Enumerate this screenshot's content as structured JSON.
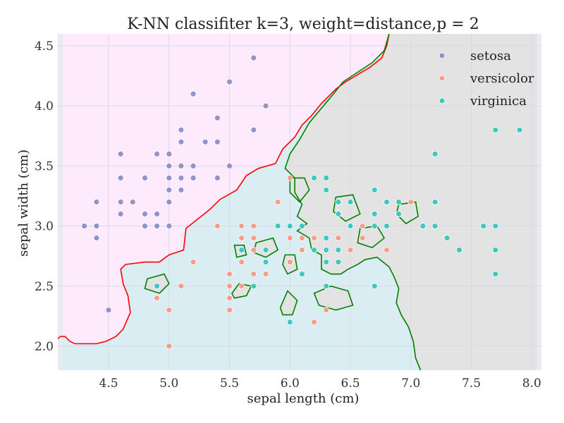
{
  "chart_data": {
    "type": "scatter",
    "title": "K-NN classifiter k=3, weight=distance,p = 2",
    "xlabel": "sepal length (cm)",
    "ylabel": "sepal width (cm)",
    "xlim": [
      4.08,
      8.08
    ],
    "ylim": [
      1.8,
      4.6
    ],
    "xticks": [
      4.5,
      5.0,
      5.5,
      6.0,
      6.5,
      7.0,
      7.5,
      8.0
    ],
    "yticks": [
      2.0,
      2.5,
      3.0,
      3.5,
      4.0,
      4.5
    ],
    "xtick_labels": [
      "4.5",
      "5.0",
      "5.5",
      "6.0",
      "6.5",
      "7.0",
      "7.5",
      "8.0"
    ],
    "ytick_labels": [
      "2.0",
      "2.5",
      "3.0",
      "3.5",
      "4.0",
      "4.5"
    ],
    "grid": true,
    "legend_position": "top-right",
    "background_regions": {
      "setosa": "#fdeafd",
      "versicolor": "#daedf3",
      "virginica": "#e3e3e3",
      "plot_bg": "#eaeaf2"
    },
    "boundary_colors": {
      "setosa_boundary": "#ff0000",
      "virginica_boundary": "#008000"
    },
    "series": [
      {
        "name": "setosa",
        "color": "#9393cc",
        "points": [
          [
            5.1,
            3.5
          ],
          [
            4.9,
            3.0
          ],
          [
            4.7,
            3.2
          ],
          [
            4.6,
            3.1
          ],
          [
            5.0,
            3.6
          ],
          [
            5.4,
            3.9
          ],
          [
            4.6,
            3.4
          ],
          [
            5.0,
            3.4
          ],
          [
            4.4,
            2.9
          ],
          [
            4.9,
            3.1
          ],
          [
            5.4,
            3.7
          ],
          [
            4.8,
            3.4
          ],
          [
            4.8,
            3.0
          ],
          [
            4.3,
            3.0
          ],
          [
            5.8,
            4.0
          ],
          [
            5.7,
            4.4
          ],
          [
            5.4,
            3.9
          ],
          [
            5.1,
            3.5
          ],
          [
            5.7,
            3.8
          ],
          [
            5.1,
            3.8
          ],
          [
            5.4,
            3.4
          ],
          [
            5.1,
            3.7
          ],
          [
            4.6,
            3.6
          ],
          [
            5.1,
            3.3
          ],
          [
            4.8,
            3.4
          ],
          [
            5.0,
            3.0
          ],
          [
            5.0,
            3.4
          ],
          [
            5.2,
            3.5
          ],
          [
            5.2,
            3.4
          ],
          [
            4.7,
            3.2
          ],
          [
            4.8,
            3.1
          ],
          [
            5.4,
            3.4
          ],
          [
            5.2,
            4.1
          ],
          [
            5.5,
            4.2
          ],
          [
            4.9,
            3.1
          ],
          [
            5.0,
            3.2
          ],
          [
            5.5,
            3.5
          ],
          [
            4.9,
            3.6
          ],
          [
            4.4,
            3.0
          ],
          [
            5.1,
            3.4
          ],
          [
            5.0,
            3.5
          ],
          [
            4.5,
            2.3
          ],
          [
            4.4,
            3.2
          ],
          [
            5.0,
            3.5
          ],
          [
            5.1,
            3.8
          ],
          [
            4.8,
            3.0
          ],
          [
            5.1,
            3.8
          ],
          [
            4.6,
            3.2
          ],
          [
            5.3,
            3.7
          ],
          [
            5.0,
            3.3
          ]
        ]
      },
      {
        "name": "versicolor",
        "color": "#f2a08c",
        "points": [
          [
            7.0,
            3.2
          ],
          [
            6.4,
            3.2
          ],
          [
            6.9,
            3.1
          ],
          [
            5.5,
            2.3
          ],
          [
            6.5,
            2.8
          ],
          [
            5.7,
            2.8
          ],
          [
            6.3,
            3.3
          ],
          [
            4.9,
            2.4
          ],
          [
            6.6,
            2.9
          ],
          [
            5.2,
            2.7
          ],
          [
            5.0,
            2.0
          ],
          [
            5.9,
            3.0
          ],
          [
            6.0,
            2.2
          ],
          [
            6.1,
            2.9
          ],
          [
            5.6,
            2.9
          ],
          [
            6.7,
            3.1
          ],
          [
            5.6,
            3.0
          ],
          [
            5.8,
            2.7
          ],
          [
            6.2,
            2.2
          ],
          [
            5.6,
            2.5
          ],
          [
            5.9,
            3.2
          ],
          [
            6.1,
            2.8
          ],
          [
            6.3,
            2.5
          ],
          [
            6.1,
            2.8
          ],
          [
            6.4,
            2.9
          ],
          [
            6.6,
            3.0
          ],
          [
            6.8,
            2.8
          ],
          [
            6.7,
            3.0
          ],
          [
            6.0,
            2.9
          ],
          [
            5.7,
            2.6
          ],
          [
            5.5,
            2.4
          ],
          [
            5.5,
            2.4
          ],
          [
            5.8,
            2.7
          ],
          [
            6.0,
            2.7
          ],
          [
            5.4,
            3.0
          ],
          [
            6.0,
            3.4
          ],
          [
            6.7,
            3.1
          ],
          [
            6.3,
            2.3
          ],
          [
            5.6,
            3.0
          ],
          [
            5.5,
            2.5
          ],
          [
            5.5,
            2.6
          ],
          [
            6.1,
            3.0
          ],
          [
            5.8,
            2.6
          ],
          [
            5.0,
            2.3
          ],
          [
            5.6,
            2.7
          ],
          [
            5.7,
            3.0
          ],
          [
            5.7,
            2.9
          ],
          [
            6.2,
            2.9
          ],
          [
            5.1,
            2.5
          ],
          [
            5.7,
            2.8
          ]
        ]
      },
      {
        "name": "virginica",
        "color": "#40c8c0",
        "points": [
          [
            6.3,
            3.3
          ],
          [
            5.8,
            2.7
          ],
          [
            7.1,
            3.0
          ],
          [
            6.3,
            2.9
          ],
          [
            6.5,
            3.0
          ],
          [
            7.6,
            3.0
          ],
          [
            4.9,
            2.5
          ],
          [
            7.3,
            2.9
          ],
          [
            6.7,
            2.5
          ],
          [
            7.2,
            3.6
          ],
          [
            6.5,
            3.2
          ],
          [
            6.4,
            2.7
          ],
          [
            6.8,
            3.0
          ],
          [
            5.7,
            2.5
          ],
          [
            5.8,
            2.8
          ],
          [
            6.4,
            3.2
          ],
          [
            6.5,
            3.0
          ],
          [
            7.7,
            3.8
          ],
          [
            7.7,
            2.6
          ],
          [
            6.0,
            2.2
          ],
          [
            6.9,
            3.2
          ],
          [
            5.6,
            2.8
          ],
          [
            7.7,
            2.8
          ],
          [
            6.3,
            2.7
          ],
          [
            6.7,
            3.3
          ],
          [
            7.2,
            3.2
          ],
          [
            6.2,
            2.8
          ],
          [
            6.1,
            3.0
          ],
          [
            6.4,
            2.8
          ],
          [
            7.2,
            3.0
          ],
          [
            7.4,
            2.8
          ],
          [
            7.9,
            3.8
          ],
          [
            6.4,
            2.8
          ],
          [
            6.3,
            2.8
          ],
          [
            6.1,
            2.6
          ],
          [
            7.7,
            3.0
          ],
          [
            6.3,
            3.4
          ],
          [
            6.4,
            3.1
          ],
          [
            6.0,
            3.0
          ],
          [
            6.9,
            3.1
          ],
          [
            6.7,
            3.1
          ],
          [
            6.9,
            3.1
          ],
          [
            5.8,
            2.7
          ],
          [
            6.8,
            3.2
          ],
          [
            6.7,
            3.3
          ],
          [
            6.7,
            3.0
          ],
          [
            6.3,
            2.5
          ],
          [
            6.5,
            3.0
          ],
          [
            6.2,
            3.4
          ],
          [
            5.9,
            3.0
          ]
        ]
      }
    ],
    "decision_boundaries": {
      "setosa_region_border": [
        [
          4.08,
          2.06
        ],
        [
          4.1,
          2.08
        ],
        [
          4.14,
          2.08
        ],
        [
          4.18,
          2.04
        ],
        [
          4.22,
          2.02
        ],
        [
          4.4,
          2.02
        ],
        [
          4.48,
          2.04
        ],
        [
          4.56,
          2.08
        ],
        [
          4.62,
          2.14
        ],
        [
          4.68,
          2.28
        ],
        [
          4.66,
          2.42
        ],
        [
          4.62,
          2.52
        ],
        [
          4.6,
          2.64
        ],
        [
          4.64,
          2.68
        ],
        [
          4.8,
          2.7
        ],
        [
          4.92,
          2.7
        ],
        [
          5.0,
          2.76
        ],
        [
          5.12,
          2.8
        ],
        [
          5.14,
          2.98
        ],
        [
          5.24,
          3.06
        ],
        [
          5.34,
          3.14
        ],
        [
          5.42,
          3.22
        ],
        [
          5.56,
          3.3
        ],
        [
          5.64,
          3.42
        ],
        [
          5.74,
          3.48
        ],
        [
          5.88,
          3.52
        ],
        [
          5.94,
          3.64
        ],
        [
          6.04,
          3.74
        ],
        [
          6.1,
          3.84
        ],
        [
          6.18,
          3.92
        ],
        [
          6.26,
          4.02
        ],
        [
          6.38,
          4.14
        ],
        [
          6.46,
          4.2
        ],
        [
          6.56,
          4.26
        ],
        [
          6.66,
          4.32
        ],
        [
          6.76,
          4.4
        ],
        [
          6.8,
          4.5
        ],
        [
          6.82,
          4.6
        ]
      ],
      "virginica_region_border": [
        [
          6.82,
          4.6
        ],
        [
          6.78,
          4.46
        ],
        [
          6.68,
          4.36
        ],
        [
          6.56,
          4.28
        ],
        [
          6.44,
          4.2
        ],
        [
          6.36,
          4.1
        ],
        [
          6.26,
          3.98
        ],
        [
          6.16,
          3.86
        ],
        [
          6.08,
          3.72
        ],
        [
          6.0,
          3.6
        ],
        [
          5.96,
          3.48
        ],
        [
          6.04,
          3.4
        ],
        [
          6.04,
          3.28
        ],
        [
          6.1,
          3.18
        ],
        [
          6.06,
          3.08
        ],
        [
          6.14,
          3.02
        ],
        [
          6.06,
          2.96
        ],
        [
          6.16,
          2.9
        ],
        [
          6.18,
          2.8
        ],
        [
          6.26,
          2.76
        ],
        [
          6.26,
          2.64
        ],
        [
          6.34,
          2.6
        ],
        [
          6.42,
          2.6
        ],
        [
          6.48,
          2.64
        ],
        [
          6.56,
          2.68
        ],
        [
          6.62,
          2.72
        ],
        [
          6.72,
          2.74
        ],
        [
          6.82,
          2.66
        ],
        [
          6.86,
          2.58
        ],
        [
          6.9,
          2.48
        ],
        [
          6.88,
          2.36
        ],
        [
          6.92,
          2.26
        ],
        [
          6.98,
          2.16
        ],
        [
          7.02,
          2.04
        ],
        [
          7.04,
          1.9
        ],
        [
          7.08,
          1.8
        ]
      ],
      "virginica_islands": [
        [
          [
            6.0,
            3.4
          ],
          [
            6.12,
            3.4
          ],
          [
            6.16,
            3.3
          ],
          [
            6.08,
            3.2
          ],
          [
            6.0,
            3.28
          ],
          [
            6.0,
            3.4
          ]
        ],
        [
          [
            6.38,
            3.24
          ],
          [
            6.52,
            3.26
          ],
          [
            6.58,
            3.1
          ],
          [
            6.46,
            3.04
          ],
          [
            6.36,
            3.12
          ],
          [
            6.38,
            3.24
          ]
        ],
        [
          [
            6.9,
            3.18
          ],
          [
            7.04,
            3.2
          ],
          [
            7.06,
            3.08
          ],
          [
            6.96,
            3.02
          ],
          [
            6.88,
            3.1
          ],
          [
            6.9,
            3.18
          ]
        ],
        [
          [
            5.96,
            2.76
          ],
          [
            6.04,
            2.76
          ],
          [
            6.06,
            2.64
          ],
          [
            5.98,
            2.6
          ],
          [
            5.94,
            2.68
          ],
          [
            5.96,
            2.76
          ]
        ],
        [
          [
            5.72,
            2.86
          ],
          [
            5.86,
            2.9
          ],
          [
            5.9,
            2.8
          ],
          [
            5.8,
            2.74
          ],
          [
            5.7,
            2.78
          ],
          [
            5.72,
            2.86
          ]
        ],
        [
          [
            4.82,
            2.56
          ],
          [
            4.96,
            2.6
          ],
          [
            5.0,
            2.52
          ],
          [
            4.92,
            2.44
          ],
          [
            4.8,
            2.48
          ],
          [
            4.82,
            2.56
          ]
        ],
        [
          [
            5.52,
            2.44
          ],
          [
            5.58,
            2.52
          ],
          [
            5.68,
            2.5
          ],
          [
            5.64,
            2.42
          ],
          [
            5.54,
            2.4
          ],
          [
            5.52,
            2.44
          ]
        ],
        [
          [
            5.92,
            2.32
          ],
          [
            5.98,
            2.46
          ],
          [
            6.06,
            2.38
          ],
          [
            6.02,
            2.26
          ],
          [
            5.94,
            2.26
          ],
          [
            5.92,
            2.32
          ]
        ],
        [
          [
            6.2,
            2.44
          ],
          [
            6.34,
            2.5
          ],
          [
            6.48,
            2.46
          ],
          [
            6.52,
            2.34
          ],
          [
            6.38,
            2.3
          ],
          [
            6.24,
            2.34
          ],
          [
            6.2,
            2.44
          ]
        ],
        [
          [
            6.58,
            2.98
          ],
          [
            6.72,
            3.0
          ],
          [
            6.78,
            2.9
          ],
          [
            6.68,
            2.82
          ],
          [
            6.56,
            2.86
          ],
          [
            6.58,
            2.98
          ]
        ],
        [
          [
            5.54,
            2.84
          ],
          [
            5.62,
            2.84
          ],
          [
            5.64,
            2.76
          ],
          [
            5.56,
            2.74
          ],
          [
            5.54,
            2.84
          ]
        ]
      ]
    }
  }
}
